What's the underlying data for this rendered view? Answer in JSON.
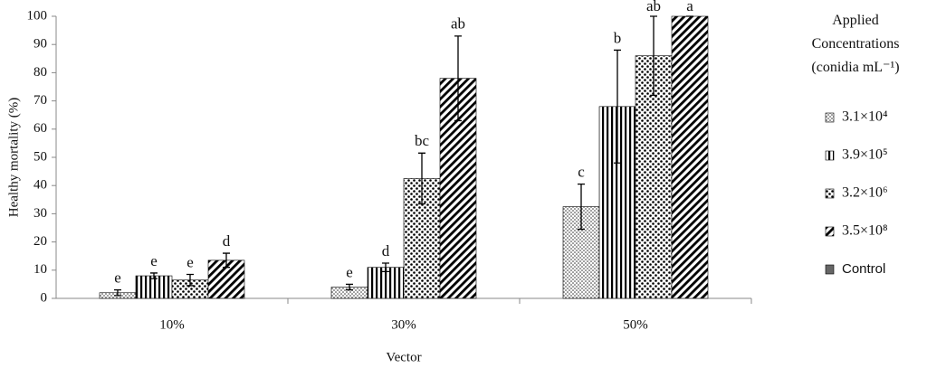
{
  "chart_data": {
    "type": "bar",
    "y_label": "Healthy mortality (%)",
    "x_label": "Vector",
    "legend_title": "Applied Concentrations (conidia mL⁻¹)",
    "categories": [
      "10%",
      "30%",
      "50%"
    ],
    "ylim": [
      0,
      100
    ],
    "yticks": [
      0,
      10,
      20,
      30,
      40,
      50,
      60,
      70,
      80,
      90,
      100
    ],
    "legend": "right",
    "series": [
      {
        "name": "3.1×10⁴",
        "pattern": "fine-dots",
        "color": "#000000",
        "values": [
          2,
          4,
          32.5
        ],
        "errors": [
          1,
          1,
          8
        ],
        "letters": [
          "e",
          "e",
          "c"
        ]
      },
      {
        "name": "3.9×10⁵",
        "pattern": "vertical",
        "color": "#000000",
        "values": [
          8,
          11,
          68
        ],
        "errors": [
          1,
          1.5,
          20
        ],
        "letters": [
          "e",
          "d",
          "b"
        ]
      },
      {
        "name": "3.2×10⁶",
        "pattern": "dots",
        "color": "#000000",
        "values": [
          6.5,
          42.5,
          86
        ],
        "errors": [
          2,
          9,
          14
        ],
        "letters": [
          "e",
          "bc",
          "ab"
        ]
      },
      {
        "name": "3.5×10⁸",
        "pattern": "diagonal",
        "color": "#000000",
        "values": [
          13.5,
          78,
          100
        ],
        "errors": [
          2.5,
          15,
          0
        ],
        "letters": [
          "d",
          "ab",
          "a"
        ]
      },
      {
        "name": "Control",
        "pattern": "solid",
        "color": "#666666",
        "values": [
          null,
          null,
          null
        ],
        "errors": [
          null,
          null,
          null
        ],
        "letters": [
          null,
          null,
          null
        ]
      }
    ]
  }
}
